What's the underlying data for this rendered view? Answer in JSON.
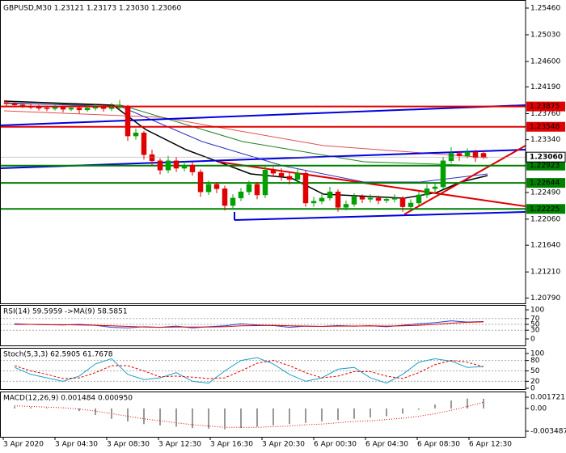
{
  "chart_data": {
    "type": "candlestick",
    "title": "GBPUSD,M30 1.23121 1.23173 1.23030 1.23060",
    "up_color": "#00a000",
    "down_color": "#e00000",
    "ylim": [
      1.20704,
      1.2559
    ],
    "yticks": [
      {
        "value": 1.2546,
        "label": "1.25460"
      },
      {
        "value": 1.2503,
        "label": "1.25030"
      },
      {
        "value": 1.246,
        "label": "1.24600"
      },
      {
        "value": 1.2419,
        "label": "1.24190"
      },
      {
        "value": 1.2376,
        "label": "1.23760"
      },
      {
        "value": 1.2334,
        "label": "1.23340"
      },
      {
        "value": 1.2249,
        "label": "1.22490"
      },
      {
        "value": 1.2206,
        "label": "1.22060"
      },
      {
        "value": 1.2164,
        "label": "1.21640"
      },
      {
        "value": 1.2121,
        "label": "1.21210"
      },
      {
        "value": 1.2079,
        "label": "1.20790"
      }
    ],
    "levels": [
      {
        "value": 1.23875,
        "color": "#e00000"
      },
      {
        "value": 1.23548,
        "color": "#e00000"
      },
      {
        "value": 1.22923,
        "color": "#008000"
      },
      {
        "value": 1.22644,
        "color": "#008000"
      },
      {
        "value": 1.22225,
        "color": "#008000"
      }
    ],
    "current_price": {
      "value": 1.2306,
      "label": "1.23060"
    },
    "x_labels": [
      "3 Apr 2020",
      "3 Apr 04:30",
      "3 Apr 08:30",
      "3 Apr 12:30",
      "3 Apr 16:30",
      "3 Apr 20:30",
      "6 Apr 00:30",
      "6 Apr 04:30",
      "6 Apr 08:30",
      "6 Apr 12:30"
    ],
    "candles": [
      [
        1.2394,
        1.2398,
        1.2388,
        1.2392
      ],
      [
        1.2392,
        1.2395,
        1.2386,
        1.239
      ],
      [
        1.239,
        1.2393,
        1.2385,
        1.2388
      ],
      [
        1.2388,
        1.2392,
        1.2383,
        1.2386
      ],
      [
        1.2386,
        1.239,
        1.2381,
        1.2385
      ],
      [
        1.2385,
        1.2389,
        1.238,
        1.2384
      ],
      [
        1.2384,
        1.239,
        1.2381,
        1.2386
      ],
      [
        1.2386,
        1.2389,
        1.2378,
        1.2383
      ],
      [
        1.2383,
        1.2391,
        1.238,
        1.2385
      ],
      [
        1.2385,
        1.2388,
        1.2376,
        1.2382
      ],
      [
        1.2382,
        1.239,
        1.2379,
        1.2385
      ],
      [
        1.2385,
        1.2392,
        1.2381,
        1.2386
      ],
      [
        1.2386,
        1.239,
        1.2379,
        1.2384
      ],
      [
        1.2384,
        1.2393,
        1.238,
        1.2386
      ],
      [
        1.2386,
        1.2398,
        1.2382,
        1.2387
      ],
      [
        1.2387,
        1.239,
        1.2332,
        1.234
      ],
      [
        1.234,
        1.2352,
        1.2334,
        1.2345
      ],
      [
        1.2345,
        1.2348,
        1.2302,
        1.231
      ],
      [
        1.231,
        1.2318,
        1.2292,
        1.23
      ],
      [
        1.23,
        1.2304,
        1.2278,
        1.2285
      ],
      [
        1.2285,
        1.2308,
        1.228,
        1.23
      ],
      [
        1.23,
        1.2306,
        1.2282,
        1.2288
      ],
      [
        1.2288,
        1.23,
        1.2283,
        1.2293
      ],
      [
        1.2293,
        1.2298,
        1.2276,
        1.2282
      ],
      [
        1.2282,
        1.2286,
        1.2242,
        1.225
      ],
      [
        1.225,
        1.2268,
        1.2245,
        1.2262
      ],
      [
        1.2262,
        1.2266,
        1.2248,
        1.2255
      ],
      [
        1.2255,
        1.226,
        1.222,
        1.2228
      ],
      [
        1.2228,
        1.2246,
        1.2222,
        1.224
      ],
      [
        1.224,
        1.2256,
        1.2235,
        1.225
      ],
      [
        1.225,
        1.2268,
        1.2245,
        1.2262
      ],
      [
        1.2262,
        1.2266,
        1.2238,
        1.2245
      ],
      [
        1.2245,
        1.2292,
        1.224,
        1.2285
      ],
      [
        1.2285,
        1.229,
        1.2274,
        1.228
      ],
      [
        1.228,
        1.2288,
        1.2268,
        1.2275
      ],
      [
        1.2275,
        1.2282,
        1.2262,
        1.227
      ],
      [
        1.227,
        1.2287,
        1.2265,
        1.228
      ],
      [
        1.228,
        1.2284,
        1.2226,
        1.2232
      ],
      [
        1.2232,
        1.2242,
        1.2226,
        1.2235
      ],
      [
        1.2235,
        1.2246,
        1.223,
        1.224
      ],
      [
        1.224,
        1.2258,
        1.2236,
        1.225
      ],
      [
        1.225,
        1.2254,
        1.2218,
        1.2225
      ],
      [
        1.2225,
        1.2236,
        1.222,
        1.223
      ],
      [
        1.223,
        1.2248,
        1.2226,
        1.2242
      ],
      [
        1.2242,
        1.2246,
        1.2232,
        1.2238
      ],
      [
        1.2238,
        1.2246,
        1.2233,
        1.224
      ],
      [
        1.224,
        1.2244,
        1.223,
        1.2236
      ],
      [
        1.2236,
        1.2243,
        1.2232,
        1.2238
      ],
      [
        1.2238,
        1.2246,
        1.2233,
        1.224
      ],
      [
        1.224,
        1.2243,
        1.2218,
        1.2226
      ],
      [
        1.2226,
        1.2238,
        1.2222,
        1.2232
      ],
      [
        1.2232,
        1.225,
        1.2228,
        1.2245
      ],
      [
        1.2245,
        1.2262,
        1.224,
        1.2255
      ],
      [
        1.2255,
        1.2264,
        1.225,
        1.2258
      ],
      [
        1.2258,
        1.2306,
        1.2254,
        1.23
      ],
      [
        1.23,
        1.2322,
        1.2296,
        1.2312
      ],
      [
        1.2312,
        1.2316,
        1.23,
        1.2308
      ],
      [
        1.2308,
        1.232,
        1.2304,
        1.2314
      ],
      [
        1.2314,
        1.2318,
        1.2298,
        1.2305
      ],
      [
        1.23121,
        1.23173,
        1.2303,
        1.2306
      ]
    ],
    "indicators": [
      {
        "type": "line",
        "title": "RSI(14) 59.5959 ->MA(9) 58.5851",
        "ylim": [
          0,
          100
        ],
        "yticks": [
          100,
          70,
          50,
          30,
          0
        ],
        "grid": true,
        "series": [
          {
            "color": "#1f3fd0",
            "style": "solid",
            "values": [
              52,
              50,
              49,
              48,
              50,
              47,
              40,
              38,
              42,
              40,
              44,
              38,
              42,
              45,
              52,
              48,
              46,
              40,
              44,
              43,
              46,
              44,
              45,
              42,
              47,
              52,
              56,
              62,
              58,
              59.5959
            ]
          },
          {
            "color": "#e00000",
            "style": "solid",
            "values": [
              50,
              50,
              49,
              49,
              48,
              47,
              45,
              43,
              41,
              40,
              41,
              41,
              41,
              42,
              45,
              46,
              47,
              45,
              44,
              43,
              44,
              44,
              45,
              44,
              45,
              47,
              50,
              54,
              57,
              58.5851
            ]
          }
        ]
      },
      {
        "type": "line",
        "title": "Stoch(5,3,3) 62.5905 61.7678",
        "ylim": [
          0,
          100
        ],
        "yticks": [
          100,
          80,
          50,
          20,
          0
        ],
        "grid": true,
        "series": [
          {
            "color": "#1aa0c8",
            "style": "solid",
            "values": [
              60,
              40,
              30,
              20,
              35,
              70,
              85,
              40,
              25,
              30,
              45,
              20,
              15,
              50,
              80,
              88,
              70,
              40,
              20,
              30,
              55,
              60,
              30,
              15,
              40,
              75,
              85,
              78,
              60,
              62.5905
            ]
          },
          {
            "color": "#e00000",
            "style": "dashed",
            "values": [
              65,
              50,
              40,
              28,
              30,
              45,
              65,
              65,
              50,
              33,
              35,
              32,
              28,
              30,
              50,
              72,
              80,
              65,
              45,
              30,
              35,
              48,
              48,
              35,
              28,
              45,
              68,
              80,
              75,
              61.7678
            ]
          }
        ]
      },
      {
        "type": "macd",
        "title": "MACD(12,26,9) 0.001484 0.000950",
        "ylim": [
          -0.00436,
          0.00259
        ],
        "yticks": [
          0.001721,
          {
            "value": 0,
            "label": "0.00"
          },
          -0.003487
        ],
        "grid": false,
        "histogram": {
          "color": "#303030",
          "values": [
            0.0003,
            0.0002,
            0.0001,
            0,
            -0.0004,
            -0.001,
            -0.0016,
            -0.002,
            -0.0024,
            -0.0026,
            -0.0028,
            -0.003,
            -0.0031,
            -0.0032,
            -0.003,
            -0.0028,
            -0.0026,
            -0.0024,
            -0.0022,
            -0.002,
            -0.0018,
            -0.0016,
            -0.0014,
            -0.0012,
            -0.0008,
            -0.0002,
            0.0006,
            0.0012,
            0.0015,
            0.001484
          ]
        },
        "series": [
          {
            "color": "#e00000",
            "style": "dotted",
            "values": [
              0.0004,
              0.0003,
              0.0002,
              0.0001,
              -0.0001,
              -0.0004,
              -0.0008,
              -0.0012,
              -0.0016,
              -0.0019,
              -0.0022,
              -0.0025,
              -0.0027,
              -0.0029,
              -0.0029,
              -0.0029,
              -0.0028,
              -0.0027,
              -0.0025,
              -0.0024,
              -0.0022,
              -0.002,
              -0.0019,
              -0.0017,
              -0.0015,
              -0.0012,
              -0.0008,
              -0.0003,
              0.0003,
              0.00095
            ]
          }
        ]
      }
    ]
  }
}
